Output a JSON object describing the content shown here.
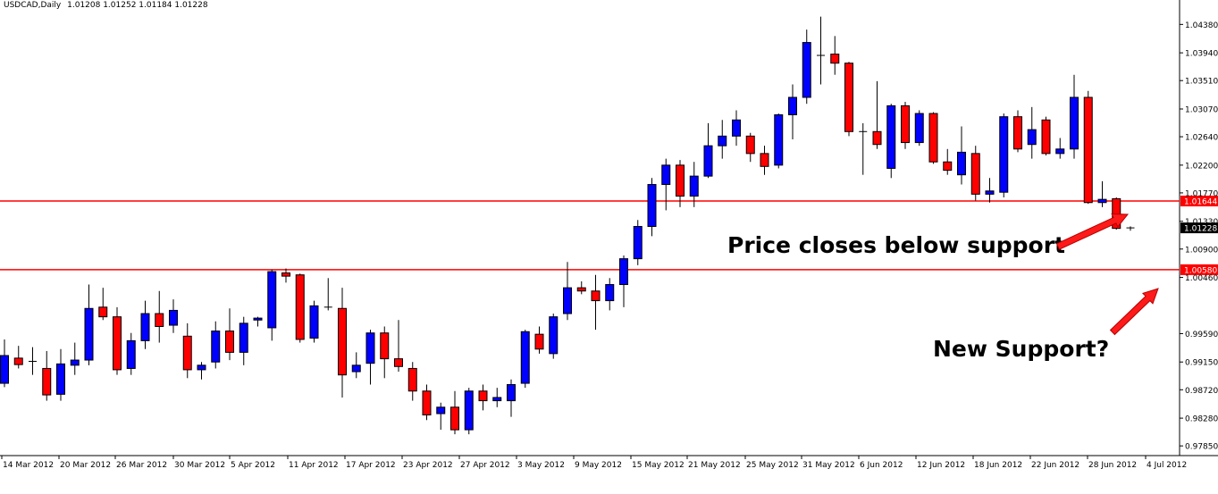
{
  "chart_data": {
    "type": "candlestick",
    "title": "USDCAD,Daily",
    "ohlc_header": "1.01208 1.01252 1.01184 1.01228",
    "ylim": [
      0.977,
      1.0462
    ],
    "y_ticks": [
      "1.04380",
      "1.03940",
      "1.03510",
      "1.03070",
      "1.02640",
      "1.02200",
      "1.01770",
      "1.01330",
      "1.00900",
      "1.00460",
      "0.99590",
      "0.99150",
      "0.98720",
      "0.98280",
      "0.97850"
    ],
    "x_labels": [
      "14 Mar 2012",
      "20 Mar 2012",
      "26 Mar 2012",
      "30 Mar 2012",
      "5 Apr 2012",
      "11 Apr 2012",
      "17 Apr 2012",
      "23 Apr 2012",
      "27 Apr 2012",
      "3 May 2012",
      "9 May 2012",
      "15 May 2012",
      "21 May 2012",
      "25 May 2012",
      "31 May 2012",
      "6 Jun 2012",
      "12 Jun 2012",
      "18 Jun 2012",
      "22 Jun 2012",
      "28 Jun 2012",
      "4 Jul 2012"
    ],
    "candles": [
      {
        "o": 0.9882,
        "h": 0.995,
        "l": 0.9876,
        "c": 0.9925
      },
      {
        "o": 0.9921,
        "h": 0.994,
        "l": 0.9905,
        "c": 0.9911
      },
      {
        "o": 0.9916,
        "h": 0.9938,
        "l": 0.9895,
        "c": 0.9916
      },
      {
        "o": 0.9905,
        "h": 0.9932,
        "l": 0.9855,
        "c": 0.9864
      },
      {
        "o": 0.9865,
        "h": 0.9935,
        "l": 0.9855,
        "c": 0.9912
      },
      {
        "o": 0.991,
        "h": 0.9945,
        "l": 0.9895,
        "c": 0.9918
      },
      {
        "o": 0.9918,
        "h": 1.0035,
        "l": 0.991,
        "c": 0.9998
      },
      {
        "o": 1.0,
        "h": 1.003,
        "l": 0.998,
        "c": 0.9985
      },
      {
        "o": 0.9985,
        "h": 1.0,
        "l": 0.9895,
        "c": 0.9903
      },
      {
        "o": 0.9905,
        "h": 0.996,
        "l": 0.9895,
        "c": 0.9948
      },
      {
        "o": 0.9948,
        "h": 1.001,
        "l": 0.9935,
        "c": 0.999
      },
      {
        "o": 0.999,
        "h": 1.0025,
        "l": 0.9945,
        "c": 0.997
      },
      {
        "o": 0.9972,
        "h": 1.0012,
        "l": 0.996,
        "c": 0.9995
      },
      {
        "o": 0.9955,
        "h": 0.9975,
        "l": 0.989,
        "c": 0.9903
      },
      {
        "o": 0.9903,
        "h": 0.9915,
        "l": 0.9888,
        "c": 0.991
      },
      {
        "o": 0.9915,
        "h": 0.9978,
        "l": 0.9905,
        "c": 0.9963
      },
      {
        "o": 0.9963,
        "h": 0.9998,
        "l": 0.9918,
        "c": 0.993
      },
      {
        "o": 0.993,
        "h": 0.9985,
        "l": 0.991,
        "c": 0.9975
      },
      {
        "o": 0.998,
        "h": 0.9985,
        "l": 0.997,
        "c": 0.9983
      },
      {
        "o": 0.9968,
        "h": 1.0058,
        "l": 0.9948,
        "c": 1.0055
      },
      {
        "o": 1.0053,
        "h": 1.006,
        "l": 1.0038,
        "c": 1.0048
      },
      {
        "o": 1.005,
        "h": 1.0052,
        "l": 0.9945,
        "c": 0.995
      },
      {
        "o": 0.9952,
        "h": 1.001,
        "l": 0.9945,
        "c": 1.0002
      },
      {
        "o": 1.0,
        "h": 1.0045,
        "l": 0.9995,
        "c": 0.9998
      },
      {
        "o": 0.9998,
        "h": 1.003,
        "l": 0.986,
        "c": 0.9895
      },
      {
        "o": 0.99,
        "h": 0.993,
        "l": 0.989,
        "c": 0.991
      },
      {
        "o": 0.9913,
        "h": 0.9965,
        "l": 0.988,
        "c": 0.996
      },
      {
        "o": 0.996,
        "h": 0.997,
        "l": 0.989,
        "c": 0.992
      },
      {
        "o": 0.992,
        "h": 0.998,
        "l": 0.99,
        "c": 0.9908
      },
      {
        "o": 0.9905,
        "h": 0.9915,
        "l": 0.9855,
        "c": 0.987
      },
      {
        "o": 0.987,
        "h": 0.988,
        "l": 0.9825,
        "c": 0.9833
      },
      {
        "o": 0.9835,
        "h": 0.9852,
        "l": 0.981,
        "c": 0.9845
      },
      {
        "o": 0.9845,
        "h": 0.987,
        "l": 0.9803,
        "c": 0.981
      },
      {
        "o": 0.981,
        "h": 0.9875,
        "l": 0.9803,
        "c": 0.987
      },
      {
        "o": 0.987,
        "h": 0.988,
        "l": 0.984,
        "c": 0.9855
      },
      {
        "o": 0.9855,
        "h": 0.9875,
        "l": 0.9845,
        "c": 0.986
      },
      {
        "o": 0.9855,
        "h": 0.9888,
        "l": 0.983,
        "c": 0.988
      },
      {
        "o": 0.9882,
        "h": 0.9965,
        "l": 0.9875,
        "c": 0.9962
      },
      {
        "o": 0.9958,
        "h": 0.997,
        "l": 0.9928,
        "c": 0.9935
      },
      {
        "o": 0.9928,
        "h": 0.999,
        "l": 0.992,
        "c": 0.9985
      },
      {
        "o": 0.999,
        "h": 1.007,
        "l": 0.998,
        "c": 1.003
      },
      {
        "o": 1.003,
        "h": 1.004,
        "l": 1.002,
        "c": 1.0025
      },
      {
        "o": 1.0025,
        "h": 1.005,
        "l": 0.9965,
        "c": 1.001
      },
      {
        "o": 1.001,
        "h": 1.0045,
        "l": 0.9995,
        "c": 1.0035
      },
      {
        "o": 1.0035,
        "h": 1.008,
        "l": 1.0,
        "c": 1.0075
      },
      {
        "o": 1.0075,
        "h": 1.0135,
        "l": 1.0065,
        "c": 1.0125
      },
      {
        "o": 1.0125,
        "h": 1.02,
        "l": 1.011,
        "c": 1.019
      },
      {
        "o": 1.019,
        "h": 1.023,
        "l": 1.015,
        "c": 1.022
      },
      {
        "o": 1.022,
        "h": 1.0228,
        "l": 1.0155,
        "c": 1.0172
      },
      {
        "o": 1.0172,
        "h": 1.0225,
        "l": 1.0155,
        "c": 1.0203
      },
      {
        "o": 1.0203,
        "h": 1.0285,
        "l": 1.02,
        "c": 1.025
      },
      {
        "o": 1.025,
        "h": 1.029,
        "l": 1.023,
        "c": 1.0265
      },
      {
        "o": 1.0265,
        "h": 1.0305,
        "l": 1.025,
        "c": 1.029
      },
      {
        "o": 1.0265,
        "h": 1.027,
        "l": 1.0225,
        "c": 1.0238
      },
      {
        "o": 1.0238,
        "h": 1.025,
        "l": 1.0205,
        "c": 1.0218
      },
      {
        "o": 1.022,
        "h": 1.03,
        "l": 1.0215,
        "c": 1.0298
      },
      {
        "o": 1.0298,
        "h": 1.0345,
        "l": 1.026,
        "c": 1.0325
      },
      {
        "o": 1.0325,
        "h": 1.043,
        "l": 1.0315,
        "c": 1.041
      },
      {
        "o": 1.039,
        "h": 1.045,
        "l": 1.0345,
        "c": 1.039
      },
      {
        "o": 1.0392,
        "h": 1.042,
        "l": 1.036,
        "c": 1.0378
      },
      {
        "o": 1.0378,
        "h": 1.038,
        "l": 1.0265,
        "c": 1.0272
      },
      {
        "o": 1.0272,
        "h": 1.0285,
        "l": 1.0205,
        "c": 1.027
      },
      {
        "o": 1.0272,
        "h": 1.035,
        "l": 1.0245,
        "c": 1.0252
      },
      {
        "o": 1.0215,
        "h": 1.0315,
        "l": 1.02,
        "c": 1.0312
      },
      {
        "o": 1.0312,
        "h": 1.0318,
        "l": 1.0245,
        "c": 1.0255
      },
      {
        "o": 1.0255,
        "h": 1.0305,
        "l": 1.025,
        "c": 1.03
      },
      {
        "o": 1.03,
        "h": 1.0302,
        "l": 1.0222,
        "c": 1.0225
      },
      {
        "o": 1.0225,
        "h": 1.0245,
        "l": 1.0205,
        "c": 1.0212
      },
      {
        "o": 1.0205,
        "h": 1.028,
        "l": 1.019,
        "c": 1.024
      },
      {
        "o": 1.0238,
        "h": 1.025,
        "l": 1.0165,
        "c": 1.0175
      },
      {
        "o": 1.0175,
        "h": 1.02,
        "l": 1.0162,
        "c": 1.018
      },
      {
        "o": 1.0178,
        "h": 1.03,
        "l": 1.017,
        "c": 1.0295
      },
      {
        "o": 1.0295,
        "h": 1.0305,
        "l": 1.024,
        "c": 1.0245
      },
      {
        "o": 1.0252,
        "h": 1.031,
        "l": 1.023,
        "c": 1.0275
      },
      {
        "o": 1.029,
        "h": 1.0295,
        "l": 1.0235,
        "c": 1.0238
      },
      {
        "o": 1.0238,
        "h": 1.0262,
        "l": 1.023,
        "c": 1.0245
      },
      {
        "o": 1.0245,
        "h": 1.036,
        "l": 1.023,
        "c": 1.0325
      },
      {
        "o": 1.0325,
        "h": 1.0335,
        "l": 1.016,
        "c": 1.0162
      },
      {
        "o": 1.0162,
        "h": 1.0195,
        "l": 1.0155,
        "c": 1.0167
      },
      {
        "o": 1.0168,
        "h": 1.017,
        "l": 1.012,
        "c": 1.0122
      },
      {
        "o": 1.01208,
        "h": 1.01252,
        "l": 1.01184,
        "c": 1.01228
      }
    ],
    "up_color": "#0000ff",
    "down_color": "#ff0000",
    "levels": [
      {
        "value": 1.01644,
        "label": "1.01644"
      },
      {
        "value": 1.0058,
        "label": "1.00580"
      }
    ],
    "current_price": {
      "value": 1.01228,
      "label": "1.01228"
    },
    "annotations": [
      "Price closes below support",
      "New Support?"
    ]
  }
}
